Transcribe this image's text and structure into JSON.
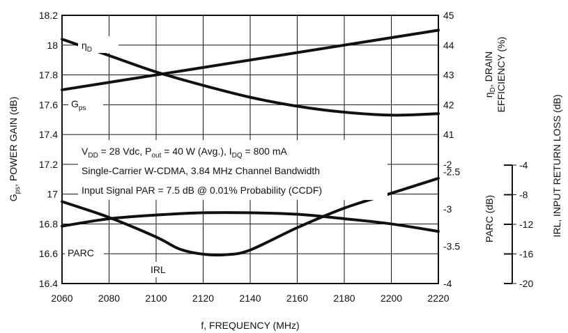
{
  "chart_data": {
    "type": "line",
    "x_axis": {
      "label": "f, FREQUENCY (MHz)",
      "min": 2060,
      "max": 2220,
      "ticks": [
        2060,
        2080,
        2100,
        2120,
        2140,
        2160,
        2180,
        2200,
        2220
      ]
    },
    "left_axis": {
      "label_main": "G",
      "label_sub": "ps",
      "label_rest": ", POWER GAIN (dB)",
      "min": 16.4,
      "max": 18.2,
      "ticks": [
        "16.4",
        "16.6",
        "16.8",
        "17",
        "17.2",
        "17.4",
        "17.6",
        "17.8",
        "18",
        "18.2"
      ]
    },
    "right_axis_efficiency": {
      "label_line1_main": "η",
      "label_line1_sub": "D",
      "label_line1_rest": ", DRAIN",
      "label_line2": "EFFICIENCY (%)",
      "min": 41,
      "max": 45,
      "ticks": [
        "41",
        "42",
        "43",
        "44",
        "45"
      ]
    },
    "right_axis_parc": {
      "label": "PARC (dB)",
      "min": -4,
      "max": -2,
      "ticks": [
        "-4",
        "-3.5",
        "-3",
        "-2.5",
        "-2"
      ]
    },
    "far_right_axis_irl": {
      "label": "IRL, INPUT RETURN LOSS (dB)",
      "min": -20,
      "max": -4,
      "ticks": [
        "-20",
        "-16",
        "-12",
        "-8",
        "-4"
      ]
    },
    "conditions": [
      {
        "parts": [
          {
            "t": "V"
          },
          {
            "t": "DD",
            "sub": true
          },
          {
            "t": " = 28 Vdc, P"
          },
          {
            "t": "out",
            "sub": true
          },
          {
            "t": " = 40 W (Avg.), I"
          },
          {
            "t": "DQ",
            "sub": true
          },
          {
            "t": " = 800 mA"
          }
        ]
      },
      {
        "parts": [
          {
            "t": "Single-Carrier W-CDMA, 3.84 MHz Channel Bandwidth"
          }
        ]
      },
      {
        "parts": [
          {
            "t": "Input Signal PAR = 7.5 dB @ 0.01% Probability (CCDF)"
          }
        ]
      }
    ],
    "series": [
      {
        "name_main": "G",
        "name_sub": "ps",
        "axis": "left",
        "x": [
          2060,
          2220
        ],
        "y": [
          17.7,
          18.1
        ]
      },
      {
        "name_main": "η",
        "name_sub": "D",
        "axis": "efficiency",
        "x": [
          2060,
          2080,
          2100,
          2120,
          2140,
          2160,
          2180,
          2200,
          2220
        ],
        "y": [
          44.2,
          43.65,
          43.1,
          42.65,
          42.25,
          41.95,
          41.75,
          41.65,
          41.7
        ]
      },
      {
        "name_main": "PARC",
        "axis": "parc",
        "x": [
          2060,
          2080,
          2100,
          2120,
          2140,
          2160,
          2180,
          2200,
          2220
        ],
        "y": [
          -3.23,
          -3.13,
          -3.08,
          -3.05,
          -3.05,
          -3.07,
          -3.13,
          -3.2,
          -3.3
        ]
      },
      {
        "name_main": "IRL",
        "axis": "irl",
        "x": [
          2060,
          2080,
          2100,
          2110,
          2120,
          2130,
          2140,
          2160,
          2180,
          2200,
          2220
        ],
        "y": [
          -11.2,
          -12.9,
          -15.0,
          -16.3,
          -16.85,
          -16.9,
          -16.4,
          -14.0,
          -11.9,
          -10.3,
          -8.7
        ]
      }
    ],
    "grid": true,
    "legend": "inline labels next to curves"
  }
}
